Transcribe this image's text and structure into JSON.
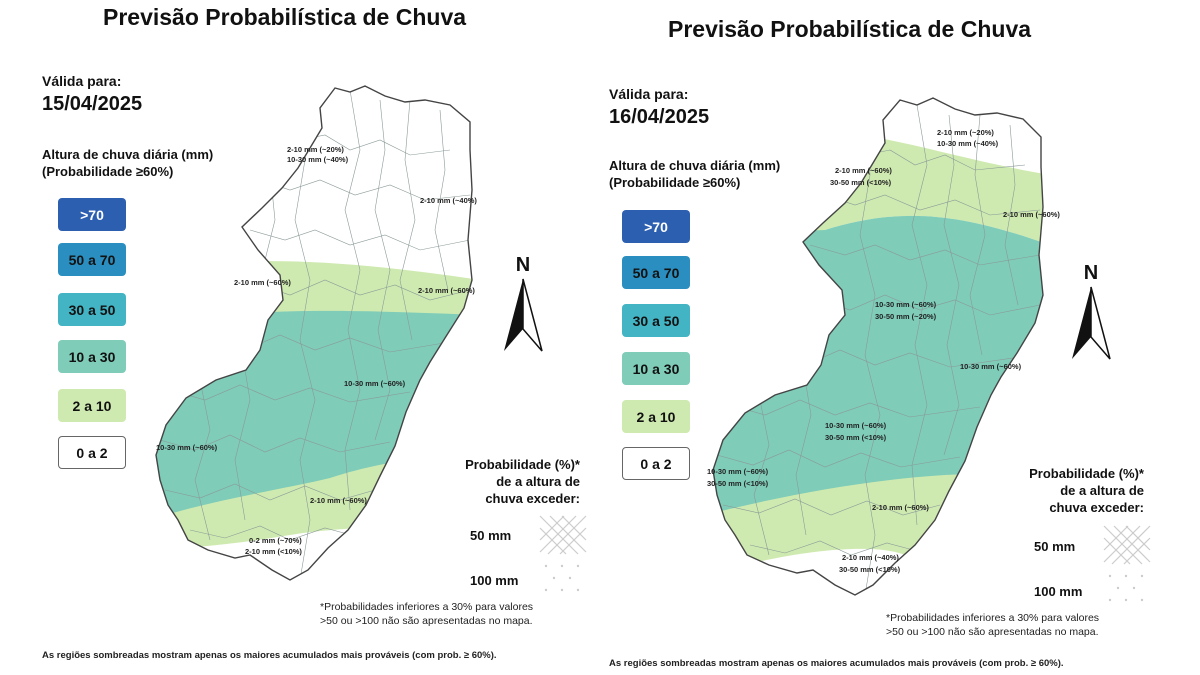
{
  "panels": [
    {
      "title": "Previsão Probabilística de Chuva",
      "valid_label": "Válida para:",
      "date": "15/04/2025",
      "legend_title_1": "Altura de chuva diária (mm)",
      "legend_title_2": "(Probabilidade ≥60%)",
      "map_labels": [
        "2-10 mm (~20%)",
        "10-30 mm (~40%)",
        "2-10 mm (~40%)",
        "2-10 mm (~60%)",
        "2-10 mm (~60%)",
        "10-30 mm (~60%)",
        "10-30 mm (~60%)",
        "2-10 mm (~60%)",
        "0-2 mm (~70%)",
        "2-10 mm (<10%)"
      ],
      "prob_title": [
        "Probabilidade (%)*",
        "de a altura de",
        "chuva exceder:"
      ],
      "prob_50": "50 mm",
      "prob_100": "100 mm",
      "note_1": "*Probabilidades inferiores a 30% para valores",
      "note_2": ">50 ou >100 não são apresentadas no mapa.",
      "footer": "As regiões sombreadas mostram apenas os maiores acumulados mais prováveis (com prob. ≥ 60%)."
    },
    {
      "title": "Previsão Probabilística de Chuva",
      "valid_label": "Válida para:",
      "date": "16/04/2025",
      "legend_title_1": "Altura de chuva diária (mm)",
      "legend_title_2": "(Probabilidade ≥60%)",
      "map_labels": [
        "2-10 mm (~20%)",
        "10-30 mm (~40%)",
        "2-10 mm (~60%)",
        "30-50 mm (<10%)",
        "2-10 mm (~60%)",
        "10-30 mm (~60%)",
        "30-50 mm (~20%)",
        "10-30 mm (~60%)",
        "10-30 mm (~60%)",
        "30-50 mm (<10%)",
        "10-30 mm (~60%)",
        "30-50 mm (<10%)",
        "2-10 mm (~60%)",
        "2-10 mm (~40%)",
        "30-50 mm (<10%)"
      ],
      "prob_title": [
        "Probabilidade (%)*",
        "de a altura de",
        "chuva exceder:"
      ],
      "prob_50": "50 mm",
      "prob_100": "100 mm",
      "note_1": "*Probabilidades inferiores a 30% para valores",
      "note_2": ">50 ou >100 não são apresentadas no mapa.",
      "footer": "As regiões sombreadas mostram apenas os maiores acumulados mais prováveis (com prob. ≥ 60%)."
    }
  ],
  "legend": [
    {
      "label": ">70",
      "color": "#2d5fb0",
      "text_color": "#ffffff"
    },
    {
      "label": "50 a 70",
      "color": "#2a8fc0",
      "text_color": "#111111"
    },
    {
      "label": "30 a 50",
      "color": "#42b4c4",
      "text_color": "#111111"
    },
    {
      "label": "10 a 30",
      "color": "#7fccb8",
      "text_color": "#111111"
    },
    {
      "label": "2 a 10",
      "color": "#cfeab0",
      "text_color": "#111111"
    },
    {
      "label": "0 a 2",
      "color": "#ffffff",
      "text_color": "#111111"
    }
  ],
  "north_label": "N",
  "colors": {
    "zone_10_30": "#7fccb8",
    "zone_2_10": "#cfeab0",
    "border": "#444444",
    "muni_line": "#8a9a98"
  }
}
